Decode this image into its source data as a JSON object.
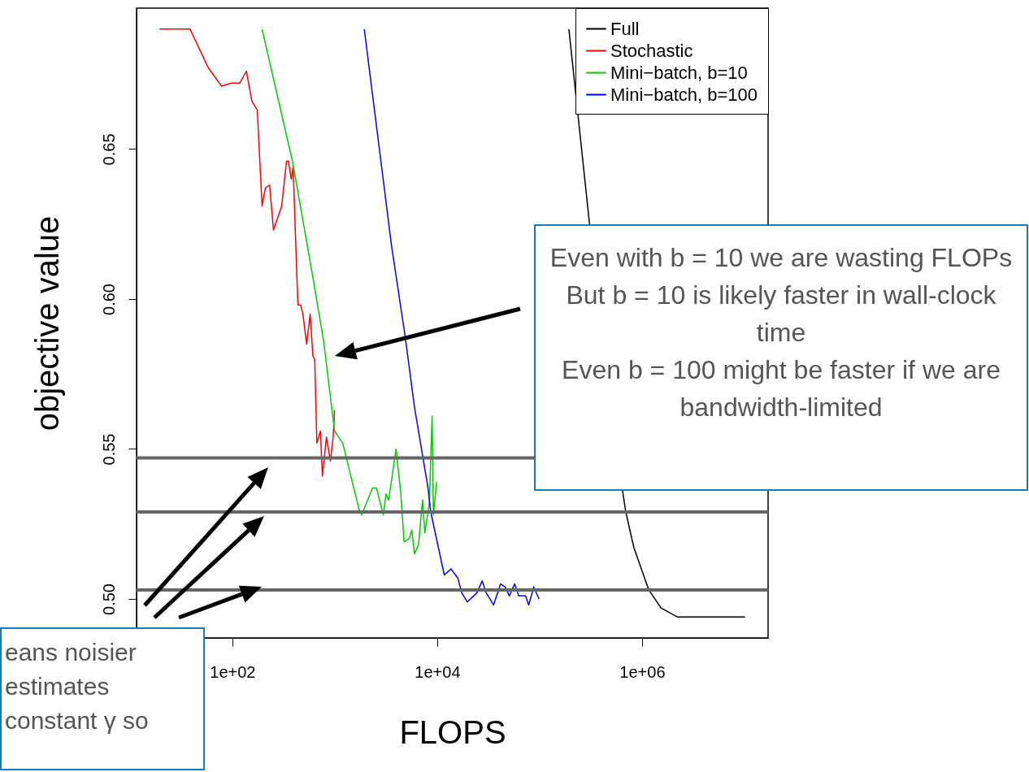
{
  "chart_data": {
    "type": "line",
    "xlabel": "FLOPS",
    "ylabel": "objective value",
    "log": "x",
    "grid": false,
    "legend": "top right",
    "marker": "none",
    "line_style": "solid",
    "xlim": [
      11.6,
      17000000
    ],
    "ylim": [
      0.487,
      0.697
    ],
    "xticks": [
      {
        "value": 100,
        "label": "1e+02"
      },
      {
        "value": 10000,
        "label": "1e+04"
      },
      {
        "value": 1000000,
        "label": "1e+06"
      }
    ],
    "yticks": [
      {
        "value": 0.5,
        "label": "0.50"
      },
      {
        "value": 0.55,
        "label": "0.55"
      },
      {
        "value": 0.6,
        "label": "0.60"
      },
      {
        "value": 0.65,
        "label": "0.65"
      }
    ],
    "series": [
      {
        "name": "Full",
        "color": "#000000",
        "x": [
          193000,
          304800,
          645700,
          693500,
          833300,
          1164000,
          1531000,
          2206000,
          10140000
        ],
        "values": [
          0.69,
          0.626,
          0.536,
          0.529,
          0.517,
          0.503,
          0.497,
          0.494,
          0.494
        ]
      },
      {
        "name": "Stochastic",
        "color": "#ff0000",
        "x": [
          19.5,
          38.6,
          58.5,
          78.4,
          98,
          118,
          137,
          155,
          175,
          195,
          210,
          231,
          252,
          303,
          338,
          353,
          375,
          392,
          424,
          437,
          464,
          488,
          531,
          575,
          611,
          637,
          668,
          724,
          757,
          829,
          907,
          964,
          995
        ],
        "values": [
          0.69,
          0.69,
          0.677,
          0.671,
          0.672,
          0.672,
          0.676,
          0.666,
          0.663,
          0.631,
          0.637,
          0.638,
          0.623,
          0.631,
          0.646,
          0.646,
          0.64,
          0.644,
          0.61,
          0.598,
          0.598,
          0.595,
          0.585,
          0.595,
          0.581,
          0.58,
          0.552,
          0.556,
          0.541,
          0.554,
          0.546,
          0.554,
          0.563
        ]
      },
      {
        "name": "Mini−batch, b=10",
        "color": "#00cc00",
        "x": [
          195,
          386,
          592,
          778,
          995,
          1194,
          1722,
          1828,
          2330,
          2553,
          2977,
          3162,
          3357,
          3963,
          4419,
          4752,
          5305,
          5644,
          5998,
          6565,
          7194,
          7565,
          8375,
          8913,
          9183,
          9865
        ],
        "values": [
          0.69,
          0.646,
          0.61,
          0.586,
          0.556,
          0.552,
          0.53,
          0.528,
          0.537,
          0.537,
          0.528,
          0.535,
          0.533,
          0.55,
          0.535,
          0.519,
          0.52,
          0.523,
          0.515,
          0.518,
          0.533,
          0.522,
          0.532,
          0.561,
          0.528,
          0.539
        ]
      },
      {
        "name": "Mini−batch, b=100",
        "color": "#0000ff",
        "x": [
          1941,
          3573,
          4842,
          5998,
          8128,
          8646,
          11720,
          13650,
          15880,
          17380,
          19670,
          24380,
          27480,
          30130,
          35480,
          41590,
          46130,
          50580,
          57020,
          62520,
          72950,
          78340,
          87500,
          98630
        ],
        "values": [
          0.69,
          0.618,
          0.588,
          0.564,
          0.537,
          0.529,
          0.508,
          0.51,
          0.507,
          0.502,
          0.499,
          0.502,
          0.506,
          0.502,
          0.498,
          0.505,
          0.504,
          0.501,
          0.505,
          0.501,
          0.501,
          0.498,
          0.504,
          0.5
        ]
      }
    ],
    "ref_lines": [
      {
        "axis": "y",
        "value": 0.547,
        "color": "#666666"
      },
      {
        "axis": "y",
        "value": 0.529,
        "color": "#666666"
      },
      {
        "axis": "y",
        "value": 0.503,
        "color": "#666666"
      }
    ],
    "annotations": [
      "Even with b = 10 we are wasting FLOPs",
      "But b = 10 is likely faster in wall-clock time",
      "Even b = 100 might be faster if we are bandwidth-limited",
      "eans noisier",
      "estimates",
      "constant γ so"
    ]
  }
}
